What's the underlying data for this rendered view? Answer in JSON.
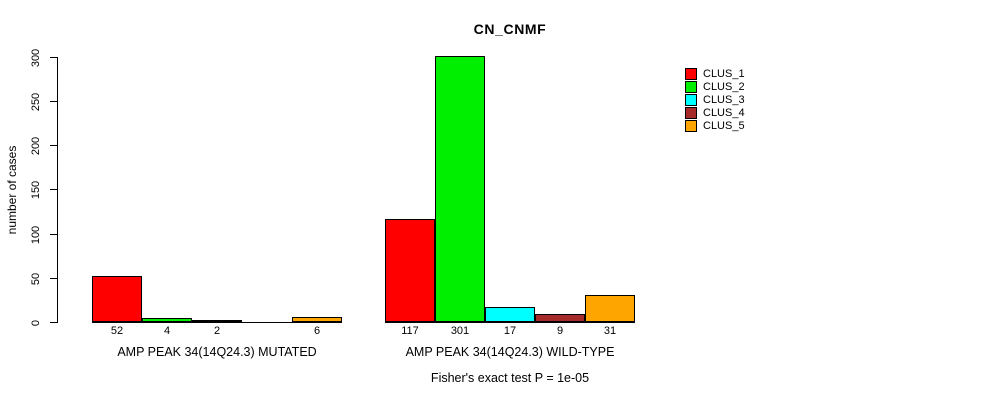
{
  "chart_data": {
    "type": "bar",
    "title": "CN_CNMF",
    "ylabel": "number of cases",
    "footnote": "Fisher's exact test P = 1e-05",
    "yticks": [
      0,
      50,
      100,
      150,
      200,
      250,
      300
    ],
    "ylim": [
      0,
      300
    ],
    "grid": false,
    "legend_position": "right",
    "categories": [
      "AMP PEAK 34(14Q24.3) MUTATED",
      "AMP PEAK 34(14Q24.3) WILD-TYPE"
    ],
    "series": [
      {
        "name": "CLUS_1",
        "color": "#ff0000",
        "values": [
          52,
          117
        ]
      },
      {
        "name": "CLUS_2",
        "color": "#00ee00",
        "values": [
          4,
          301
        ]
      },
      {
        "name": "CLUS_3",
        "color": "#00ffff",
        "values": [
          2,
          17
        ]
      },
      {
        "name": "CLUS_4",
        "color": "#a52a2a",
        "values": [
          0,
          9
        ]
      },
      {
        "name": "CLUS_5",
        "color": "#ffa500",
        "values": [
          6,
          31
        ]
      }
    ],
    "bar_labels": [
      [
        "52",
        "4",
        "2",
        "",
        "6"
      ],
      [
        "117",
        "301",
        "17",
        "9",
        "31"
      ]
    ]
  },
  "colors": {
    "axis": "#000000",
    "background": "#ffffff"
  }
}
